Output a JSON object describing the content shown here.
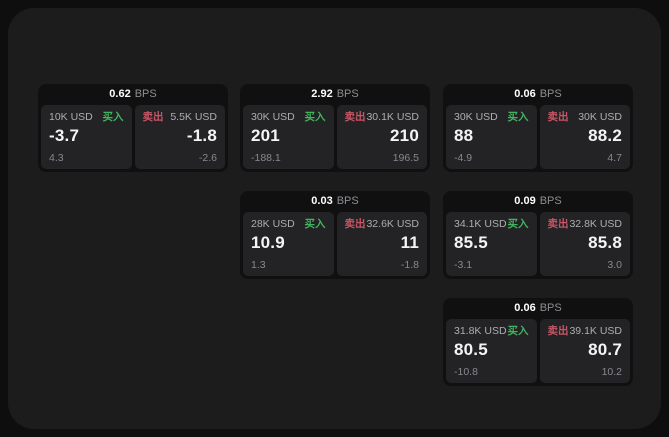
{
  "colors": {
    "page_bg": "#0e0e0e",
    "panel_bg": "#1c1c1d",
    "card_bg": "#101011",
    "subcard_bg": "#232325",
    "buy": "#42b35f",
    "sell": "#c85565"
  },
  "labels": {
    "bps_unit": "BPS",
    "buy": "买入",
    "sell": "卖出"
  },
  "cards": [
    {
      "bps": "0.62",
      "buy": {
        "amount": "10K USD",
        "price": "-3.7",
        "delta": "4.3"
      },
      "sell": {
        "amount": "5.5K USD",
        "price": "-1.8",
        "delta": "-2.6"
      }
    },
    {
      "bps": "2.92",
      "buy": {
        "amount": "30K USD",
        "price": "201",
        "delta": "-188.1"
      },
      "sell": {
        "amount": "30.1K USD",
        "price": "210",
        "delta": "196.5"
      }
    },
    {
      "bps": "0.06",
      "buy": {
        "amount": "30K USD",
        "price": "88",
        "delta": "-4.9"
      },
      "sell": {
        "amount": "30K USD",
        "price": "88.2",
        "delta": "4.7"
      }
    },
    {
      "bps": "0.03",
      "buy": {
        "amount": "28K USD",
        "price": "10.9",
        "delta": "1.3"
      },
      "sell": {
        "amount": "32.6K USD",
        "price": "11",
        "delta": "-1.8"
      }
    },
    {
      "bps": "0.09",
      "buy": {
        "amount": "34.1K USD",
        "price": "85.5",
        "delta": "-3.1"
      },
      "sell": {
        "amount": "32.8K USD",
        "price": "85.8",
        "delta": "3.0"
      }
    },
    {
      "bps": "0.06",
      "buy": {
        "amount": "31.8K USD",
        "price": "80.5",
        "delta": "-10.8"
      },
      "sell": {
        "amount": "39.1K USD",
        "price": "80.7",
        "delta": "10.2"
      }
    }
  ]
}
